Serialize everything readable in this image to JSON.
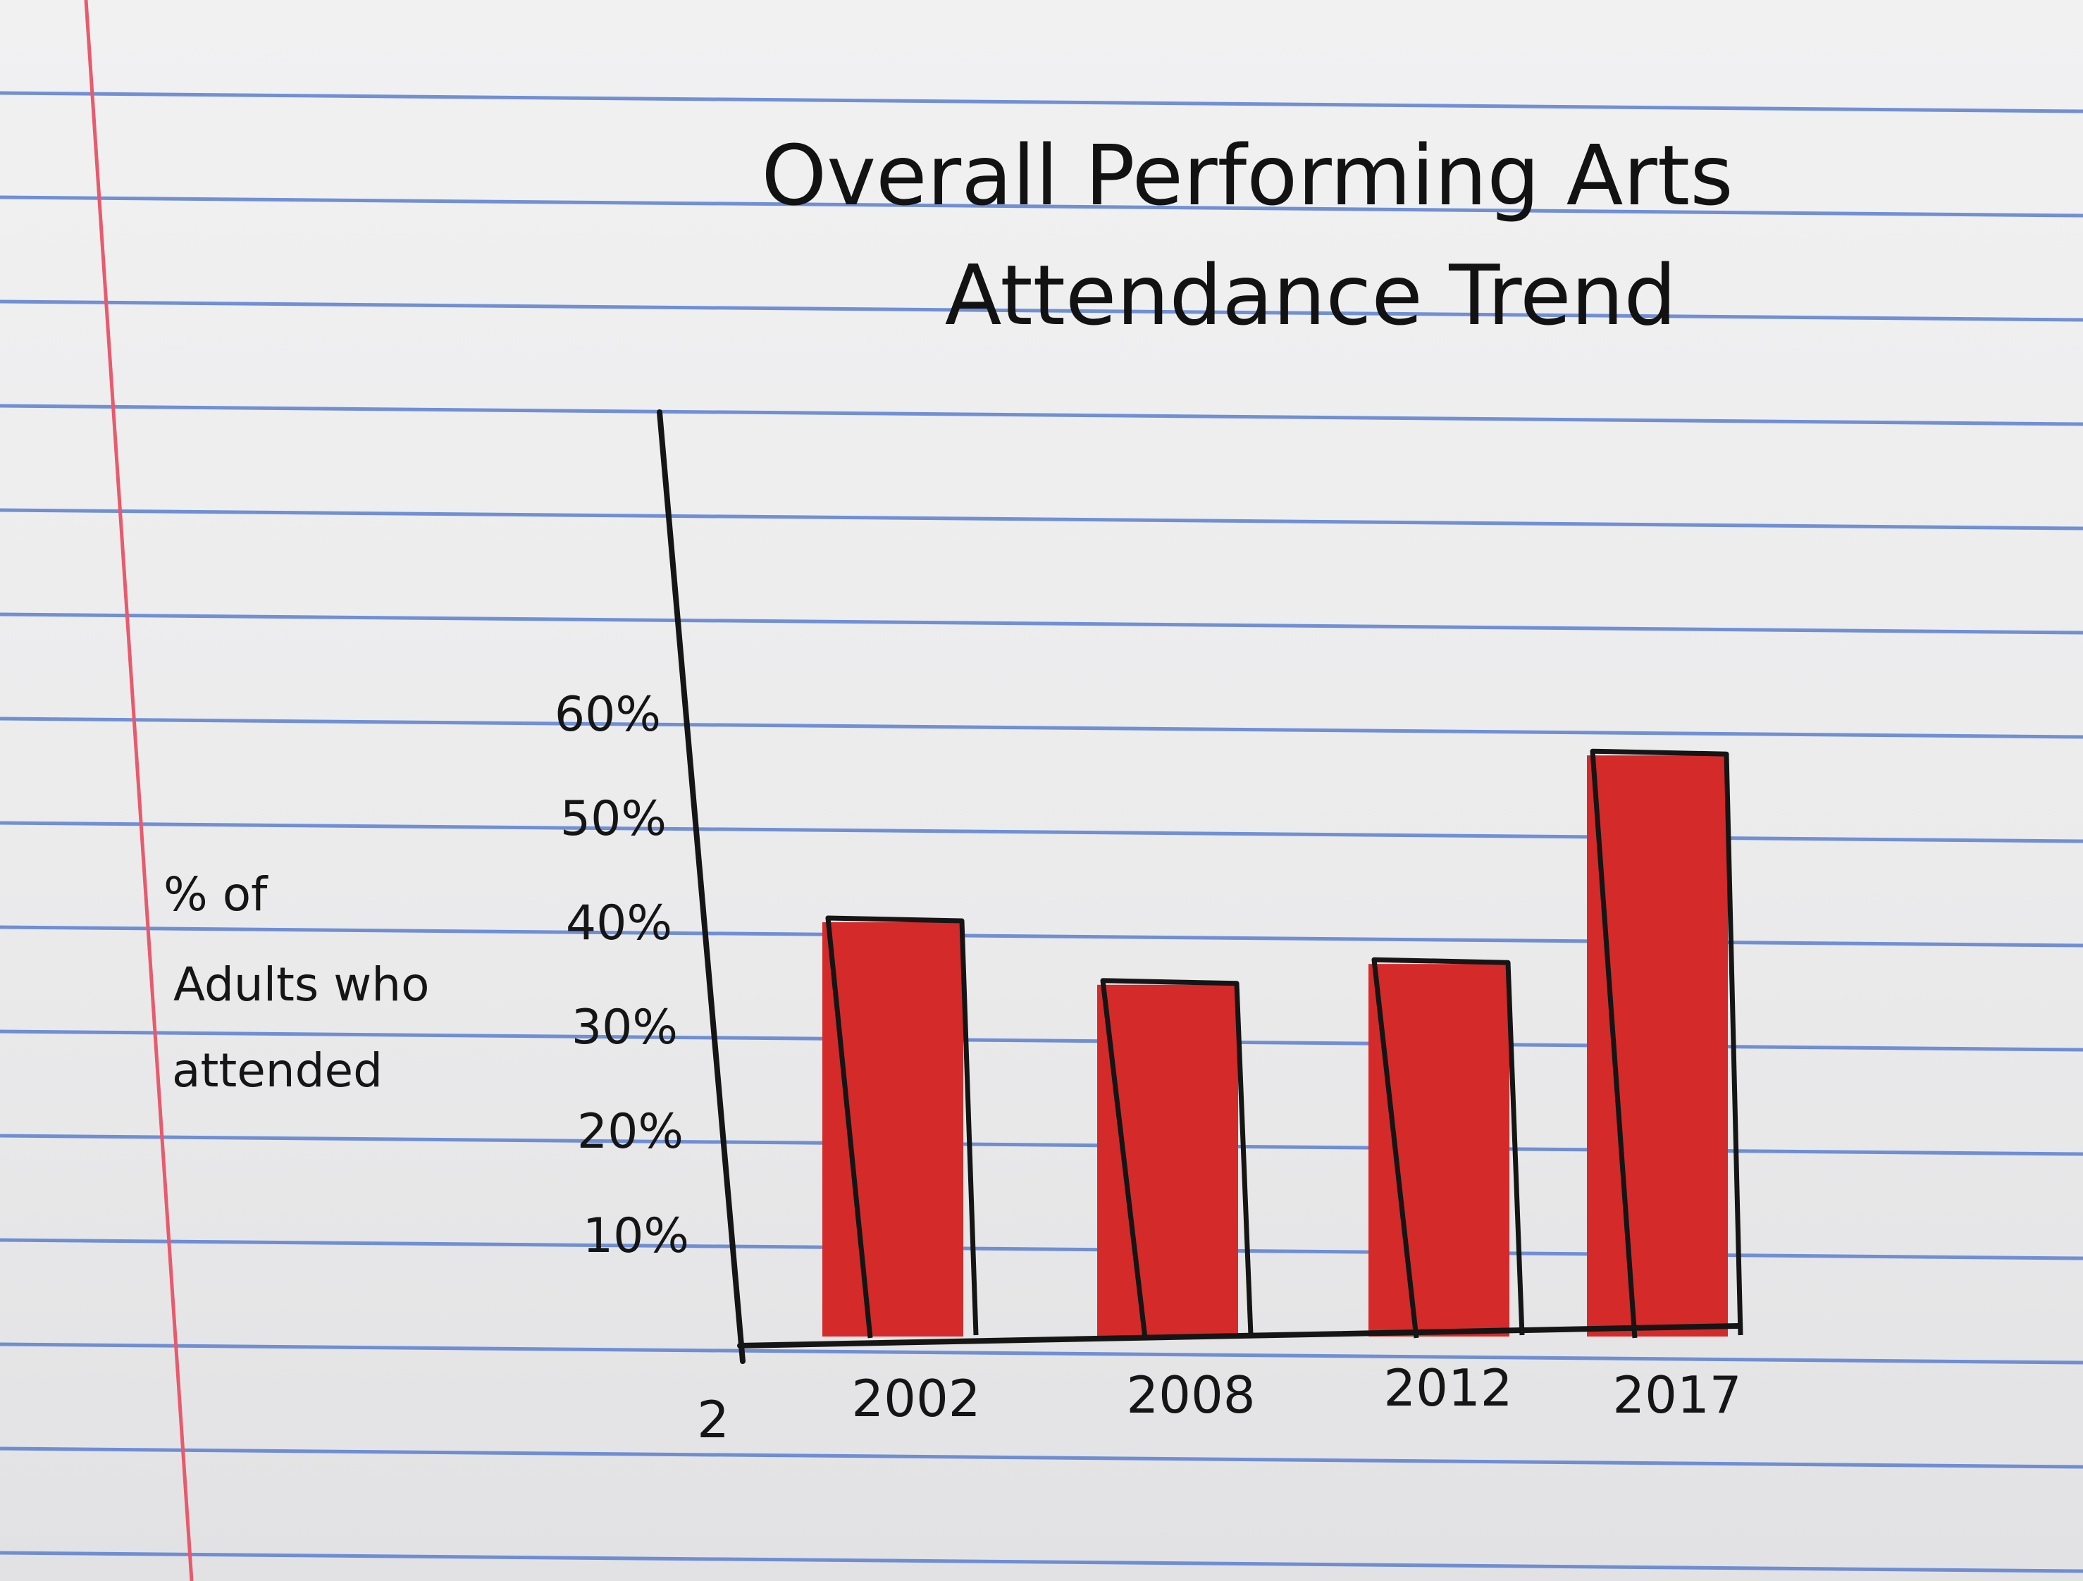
{
  "paper": {
    "rule_color": "#5b7fd0",
    "margin_color": "#e85a6c",
    "ink_color": "#151515",
    "bar_color": "#d42a2a"
  },
  "chart_data": {
    "type": "bar",
    "title_lines": [
      "Overall Performing Arts",
      "Attendance Trend"
    ],
    "ylabel_lines": [
      "% of",
      "Adults who",
      "attended"
    ],
    "xlabel": "",
    "origin_label": "2",
    "categories": [
      "2002",
      "2008",
      "2012",
      "2017"
    ],
    "values": [
      40,
      34,
      36,
      56
    ],
    "yticks": [
      "10%",
      "20%",
      "30%",
      "40%",
      "50%",
      "60%"
    ],
    "ylim": [
      0,
      80
    ],
    "grid": false,
    "legend": "none"
  }
}
